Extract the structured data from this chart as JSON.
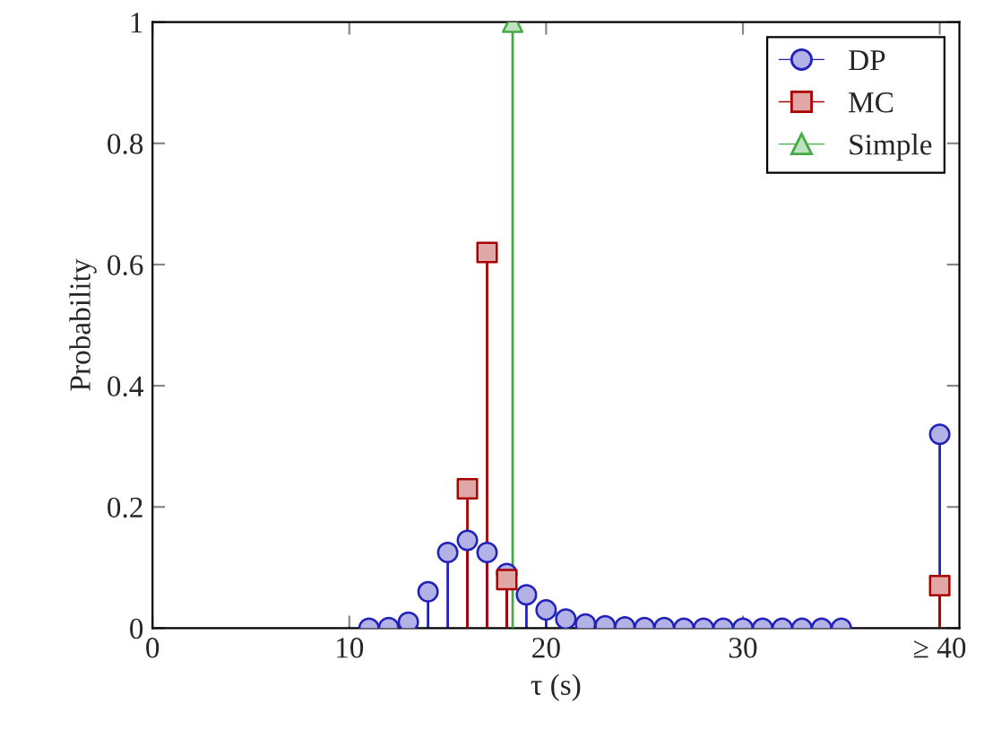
{
  "chart_data": {
    "type": "lollipop",
    "xlabel": "τ (s)",
    "ylabel": "Probability",
    "xlim": [
      0,
      41
    ],
    "xticks": [
      0,
      10,
      20,
      30,
      {
        "value": 40,
        "label": "≥ 40"
      }
    ],
    "ylim": [
      0,
      1
    ],
    "yticks": [
      0,
      0.2,
      0.4,
      0.6,
      0.8,
      1
    ],
    "legend": "top right",
    "grid": false,
    "series": [
      {
        "name": "DP",
        "color": "#2222bb",
        "marker": "circle",
        "x": [
          11,
          12,
          13,
          14,
          15,
          16,
          17,
          18,
          19,
          20,
          21,
          22,
          23,
          24,
          25,
          26,
          27,
          28,
          29,
          30,
          31,
          32,
          33,
          34,
          35,
          40
        ],
        "values": [
          0,
          0.001,
          0.01,
          0.06,
          0.125,
          0.145,
          0.125,
          0.09,
          0.055,
          0.03,
          0.015,
          0.007,
          0.004,
          0.002,
          0.001,
          0.001,
          0,
          0,
          0,
          0,
          0,
          0,
          0,
          0,
          0,
          0.32
        ]
      },
      {
        "name": "MC",
        "color": "#aa0000",
        "marker": "square",
        "x": [
          16,
          17,
          18,
          40
        ],
        "values": [
          0.23,
          0.62,
          0.08,
          0.07
        ]
      },
      {
        "name": "Simple",
        "color": "#44aa44",
        "marker": "triangle",
        "x": [
          18.3
        ],
        "values": [
          1
        ]
      }
    ]
  }
}
